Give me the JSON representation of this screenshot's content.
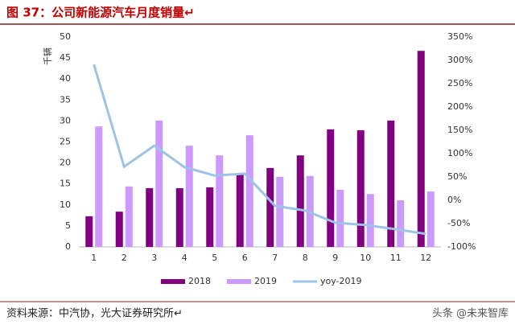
{
  "chart_data": {
    "type": "bar",
    "title": "图 37：公司新能源汽车月度销量↵",
    "y_label": "千辆",
    "source": "资料来源：中汽协，光大证券研究所↵",
    "watermark": "头条 @未来智库",
    "categories": [
      "1",
      "2",
      "3",
      "4",
      "5",
      "6",
      "7",
      "8",
      "9",
      "10",
      "11",
      "12"
    ],
    "series": [
      {
        "name": "2018",
        "color": "#800080",
        "values": [
          7.3,
          8.4,
          14,
          14,
          14.2,
          17.2,
          18.8,
          21.8,
          28,
          27.8,
          30.1,
          46.7
        ]
      },
      {
        "name": "2019",
        "color": "#cc99ff",
        "values": [
          28.7,
          14.4,
          30.1,
          24.1,
          21.8,
          26.6,
          16.7,
          16.9,
          13.6,
          12.6,
          11.1,
          13.2
        ]
      },
      {
        "name": "yoy-2019",
        "type": "line",
        "axis": "y2",
        "color": "#9dc3e6",
        "values": [
          291,
          72,
          117,
          71,
          53,
          57,
          -12,
          -22,
          -48,
          -53,
          -62,
          -72
        ]
      }
    ],
    "ylim": [
      0,
      50
    ],
    "yticks": [
      0,
      5,
      10,
      15,
      20,
      25,
      30,
      35,
      40,
      45,
      50
    ],
    "y2lim": [
      -100,
      350
    ],
    "y2ticks": [
      {
        "value": -100,
        "label": "-100%"
      },
      {
        "value": -50,
        "label": "-50%"
      },
      {
        "value": 0,
        "label": "0%"
      },
      {
        "value": 50,
        "label": "50%"
      },
      {
        "value": 100,
        "label": "100%"
      },
      {
        "value": 150,
        "label": "150%"
      },
      {
        "value": 200,
        "label": "200%"
      },
      {
        "value": 250,
        "label": "250%"
      },
      {
        "value": 300,
        "label": "300%"
      },
      {
        "value": 350,
        "label": "350%"
      }
    ],
    "grid": false,
    "legend": "bottom"
  }
}
